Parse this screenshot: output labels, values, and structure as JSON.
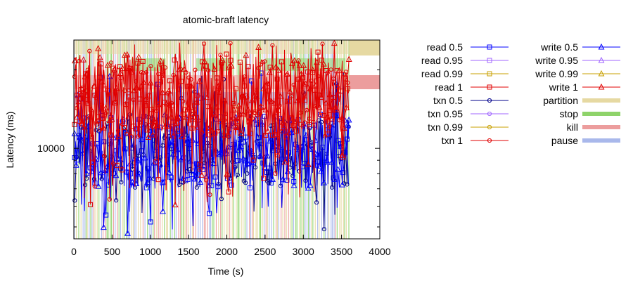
{
  "chart_data": {
    "type": "line",
    "title": "atomic-braft latency",
    "xlabel": "Time (s)",
    "ylabel": "Latency (ms)",
    "xlim": [
      0,
      4000
    ],
    "xscale": "linear",
    "yscale": "log",
    "ylim": [
      4500,
      26000
    ],
    "x_ticks": [
      "0",
      "500",
      "1000",
      "1500",
      "2000",
      "2500",
      "3000",
      "3500",
      "4000"
    ],
    "y_ticks": [
      "10000"
    ],
    "grid": false,
    "legend_position": "right (two columns)",
    "series": [
      {
        "name": "read 0.5",
        "color": "#0000ff",
        "marker": "square"
      },
      {
        "name": "read 0.95",
        "color": "#a066ff",
        "marker": "square"
      },
      {
        "name": "read 0.99",
        "color": "#c8a000",
        "marker": "square"
      },
      {
        "name": "read 1",
        "color": "#e00000",
        "marker": "square"
      },
      {
        "name": "txn 0.5",
        "color": "#00008b",
        "marker": "circle"
      },
      {
        "name": "txn 0.95",
        "color": "#a066ff",
        "marker": "circle"
      },
      {
        "name": "txn 0.99",
        "color": "#c8a000",
        "marker": "circle"
      },
      {
        "name": "txn 1",
        "color": "#e00000",
        "marker": "circle"
      },
      {
        "name": "write 0.5",
        "color": "#0000ff",
        "marker": "triangle"
      },
      {
        "name": "write 0.95",
        "color": "#a066ff",
        "marker": "triangle"
      },
      {
        "name": "write 0.99",
        "color": "#c8a000",
        "marker": "triangle"
      },
      {
        "name": "write 1",
        "color": "#e00000",
        "marker": "triangle"
      }
    ],
    "nemesis": [
      {
        "name": "partition",
        "color": "#e6d9a2"
      },
      {
        "name": "stop",
        "color": "#8ed36a"
      },
      {
        "name": "kill",
        "color": "#ec9d9d"
      },
      {
        "name": "pause",
        "color": "#a9b8eb"
      }
    ],
    "median_range": [
      7000,
      13500
    ],
    "max_range": [
      11000,
      22000
    ],
    "data_x_range": [
      0,
      3600
    ],
    "nemesis_x_range": [
      0,
      3600
    ]
  }
}
